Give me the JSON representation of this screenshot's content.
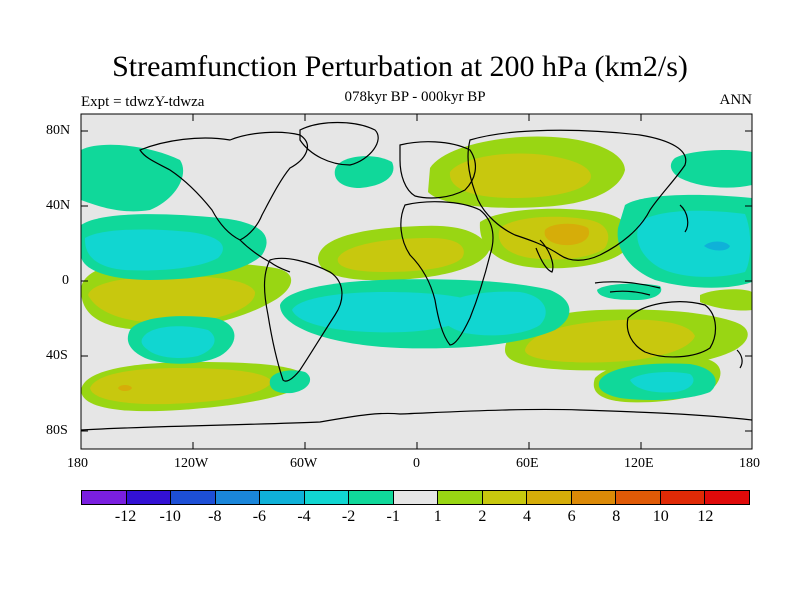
{
  "title": "Streamfunction Perturbation at 200 hPa (km2/s)",
  "subtitle": "078kyr BP - 000kyr BP",
  "expt": "Expt = tdwzY-tdwza",
  "season": "ANN",
  "lat_labels": [
    "80N",
    "40N",
    "0",
    "40S",
    "80S"
  ],
  "lon_labels": [
    "180",
    "120W",
    "60W",
    "0",
    "60E",
    "120E",
    "180"
  ],
  "colorbar": {
    "colors": [
      "#7a1fe0",
      "#3311d4",
      "#1d4fd6",
      "#1a86da",
      "#0fb1d8",
      "#11d6d1",
      "#10d89a",
      "#e6e6e6",
      "#99d613",
      "#c8c80e",
      "#d6ad09",
      "#dc8a07",
      "#e05a06",
      "#e02a06",
      "#e00a0a"
    ],
    "labels": [
      "-12",
      "-10",
      "-8",
      "-6",
      "-4",
      "-2",
      "-1",
      "1",
      "2",
      "4",
      "6",
      "8",
      "10",
      "12"
    ]
  }
}
